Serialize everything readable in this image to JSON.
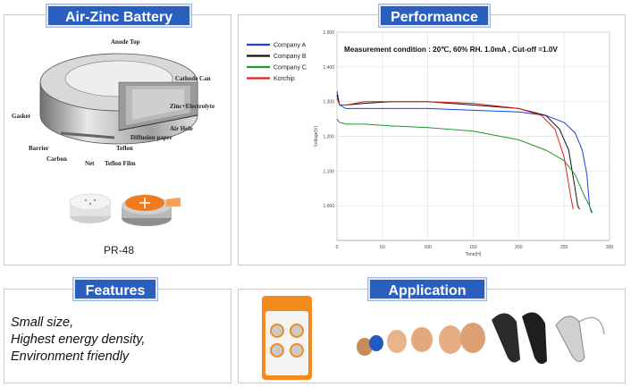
{
  "panels": {
    "battery": {
      "title": "Air-Zinc Battery",
      "diagram_labels": [
        "Anode Top",
        "Cathode Can",
        "Zinc+Electrolyte",
        "Gasket",
        "Air Hole",
        "Diffusion paper",
        "Teflon",
        "Barrier",
        "Carbon",
        "Net",
        "Teflon Film"
      ],
      "product_label": "PR-48"
    },
    "performance": {
      "title": "Performance"
    },
    "features": {
      "title": "Features",
      "items": [
        "Small size,",
        "Highest energy density,",
        "Environment friendly"
      ]
    },
    "application": {
      "title": "Application"
    }
  },
  "chart_data": {
    "type": "line",
    "title": "Measurement condition : 20℃, 60% RH. 1.0mA , Cut-off =1.0V",
    "xlabel": "Time(H)",
    "ylabel": "Voltage(V)",
    "xlim": [
      0,
      300
    ],
    "ylim": [
      0.9,
      1.5
    ],
    "xticks": [
      "0",
      "50",
      "100",
      "150",
      "200",
      "250",
      "300"
    ],
    "yticks": [
      "1.500",
      "1.400",
      "1.300",
      "1.200",
      "1.100",
      "1.000"
    ],
    "grid": true,
    "legend_position": "top-left",
    "series": [
      {
        "name": "Company A",
        "color": "#1f3fe0",
        "x": [
          0,
          3,
          10,
          30,
          60,
          100,
          150,
          200,
          230,
          250,
          262,
          270,
          275,
          278,
          280
        ],
        "y": [
          1.33,
          1.29,
          1.28,
          1.28,
          1.28,
          1.28,
          1.275,
          1.27,
          1.26,
          1.24,
          1.21,
          1.16,
          1.09,
          1.0,
          0.98
        ]
      },
      {
        "name": "Company B",
        "color": "#111111",
        "x": [
          0,
          3,
          10,
          30,
          60,
          100,
          150,
          200,
          230,
          245,
          255,
          262,
          265,
          267
        ],
        "y": [
          1.32,
          1.29,
          1.29,
          1.295,
          1.3,
          1.3,
          1.29,
          1.28,
          1.26,
          1.22,
          1.16,
          1.05,
          1.0,
          0.99
        ]
      },
      {
        "name": "Company C",
        "color": "#1a9a2a",
        "x": [
          0,
          3,
          10,
          30,
          60,
          100,
          150,
          200,
          230,
          250,
          262,
          272,
          278,
          281
        ],
        "y": [
          1.25,
          1.24,
          1.235,
          1.235,
          1.23,
          1.225,
          1.215,
          1.19,
          1.16,
          1.13,
          1.09,
          1.03,
          1.0,
          0.98
        ]
      },
      {
        "name": "Korchip",
        "color": "#e02020",
        "x": [
          0,
          3,
          10,
          30,
          60,
          100,
          150,
          200,
          225,
          240,
          250,
          257,
          260
        ],
        "y": [
          1.31,
          1.29,
          1.29,
          1.3,
          1.3,
          1.3,
          1.295,
          1.28,
          1.26,
          1.22,
          1.14,
          1.03,
          0.99
        ]
      }
    ]
  }
}
